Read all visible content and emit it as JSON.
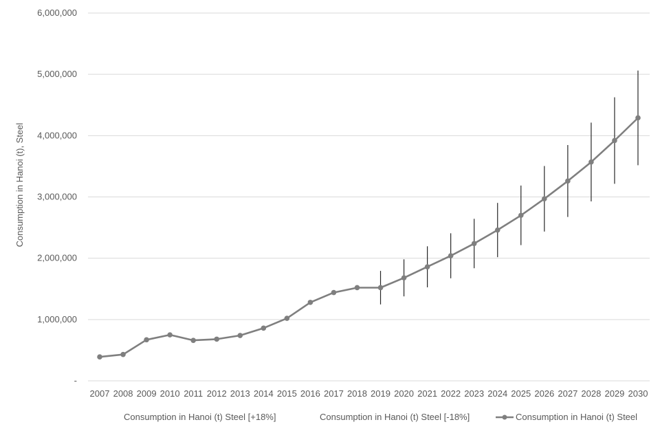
{
  "chart_data": {
    "type": "line",
    "ylabel": "Consumption in Hanoi (t), Steel",
    "xlabel": "",
    "ylim": [
      0,
      6000000
    ],
    "yticks": [
      {
        "value": 0,
        "label": "-"
      },
      {
        "value": 1000000,
        "label": "1,000,000"
      },
      {
        "value": 2000000,
        "label": "2,000,000"
      },
      {
        "value": 3000000,
        "label": "3,000,000"
      },
      {
        "value": 4000000,
        "label": "4,000,000"
      },
      {
        "value": 5000000,
        "label": "5,000,000"
      },
      {
        "value": 6000000,
        "label": "6,000,000"
      }
    ],
    "grid": true,
    "legend_position": "bottom",
    "categories": [
      "2007",
      "2008",
      "2009",
      "2010",
      "2011",
      "2012",
      "2013",
      "2014",
      "2015",
      "2016",
      "2017",
      "2018",
      "2019",
      "2020",
      "2021",
      "2022",
      "2023",
      "2024",
      "2025",
      "2026",
      "2027",
      "2028",
      "2029",
      "2030"
    ],
    "series": [
      {
        "name": "Consumption in Hanoi (t) Steel",
        "values": [
          390000,
          430000,
          670000,
          750000,
          660000,
          680000,
          740000,
          860000,
          1020000,
          1280000,
          1440000,
          1520000,
          1520000,
          1680000,
          1860000,
          2040000,
          2240000,
          2460000,
          2700000,
          2970000,
          3260000,
          3570000,
          3920000,
          4290000
        ],
        "color": "#7f7f7f",
        "marker": "circle"
      }
    ],
    "error_bars": {
      "upper_name": "Consumption in Hanoi (t) Steel [+18%]",
      "lower_name": "Consumption in Hanoi (t) Steel  [-18%]",
      "percent": 18,
      "start_category": "2019",
      "color": "#262626"
    },
    "legend": [
      {
        "label": "Consumption in Hanoi (t) Steel [+18%]",
        "marker": "none"
      },
      {
        "label": "Consumption in Hanoi (t) Steel  [-18%]",
        "marker": "none"
      },
      {
        "label": "Consumption in Hanoi (t) Steel",
        "marker": "line-circle"
      }
    ],
    "colors": {
      "grid": "#d9d9d9",
      "axis_text": "#595959",
      "line": "#7f7f7f",
      "error": "#262626"
    }
  }
}
